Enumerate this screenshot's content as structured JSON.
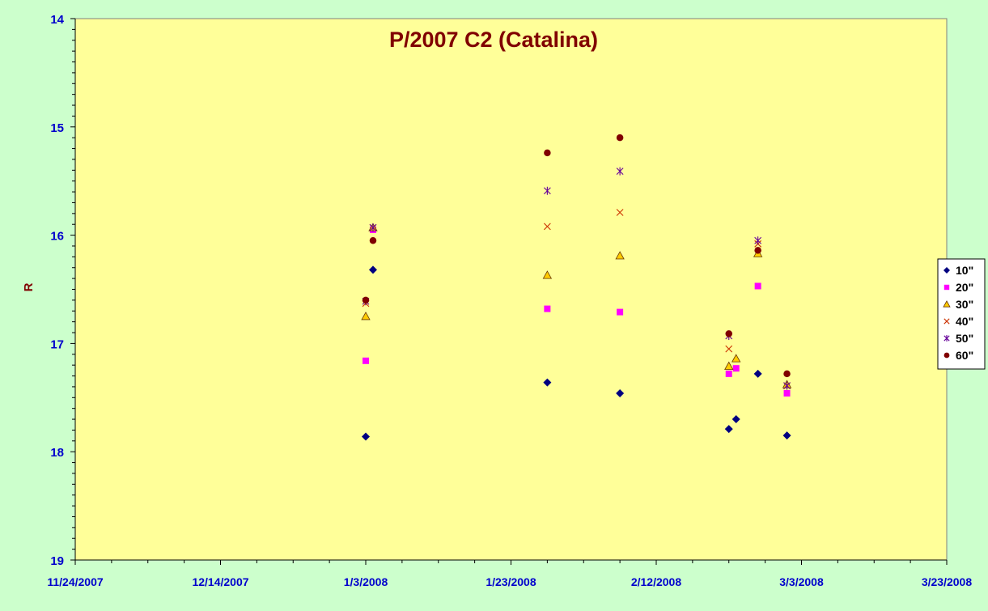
{
  "chart_data": {
    "type": "scatter",
    "title": "P/2007 C2 (Catalina)",
    "xlabel": "",
    "ylabel": "R",
    "x_ticks": [
      "11/24/2007",
      "12/14/2007",
      "1/3/2008",
      "1/23/2008",
      "2/12/2008",
      "3/3/2008",
      "3/23/2008"
    ],
    "x_range": [
      "11/24/2007",
      "3/23/2008"
    ],
    "y_ticks": [
      "14",
      "15",
      "16",
      "17",
      "18",
      "19"
    ],
    "y_range": [
      14,
      19
    ],
    "y_reversed": true,
    "grid": false,
    "legend_position": "right",
    "colors": {
      "plot_background": "#ffff99",
      "outer_background": "#ccffcc",
      "title": "#800000",
      "tick_labels": "#0000cc",
      "axis_label": "#800000"
    },
    "series": [
      {
        "name": "10\"",
        "marker": "diamond",
        "color": "#000080",
        "points": [
          {
            "x": "1/3/2008",
            "y": 17.86
          },
          {
            "x": "1/4/2008",
            "y": 16.32
          },
          {
            "x": "1/28/2008",
            "y": 17.36
          },
          {
            "x": "2/7/2008",
            "y": 17.46
          },
          {
            "x": "2/22/2008",
            "y": 17.79
          },
          {
            "x": "2/23/2008",
            "y": 17.7
          },
          {
            "x": "2/26/2008",
            "y": 17.28
          },
          {
            "x": "3/1/2008",
            "y": 17.85
          }
        ]
      },
      {
        "name": "20\"",
        "marker": "square",
        "color": "#ff00ff",
        "points": [
          {
            "x": "1/3/2008",
            "y": 17.16
          },
          {
            "x": "1/4/2008",
            "y": 15.95
          },
          {
            "x": "1/28/2008",
            "y": 16.68
          },
          {
            "x": "2/7/2008",
            "y": 16.71
          },
          {
            "x": "2/22/2008",
            "y": 17.28
          },
          {
            "x": "2/23/2008",
            "y": 17.23
          },
          {
            "x": "2/26/2008",
            "y": 16.47
          },
          {
            "x": "3/1/2008",
            "y": 17.46
          }
        ]
      },
      {
        "name": "30\"",
        "marker": "triangle",
        "color": "#ffcc00",
        "points": [
          {
            "x": "1/3/2008",
            "y": 16.75
          },
          {
            "x": "1/4/2008",
            "y": 15.93
          },
          {
            "x": "1/28/2008",
            "y": 16.37
          },
          {
            "x": "2/7/2008",
            "y": 16.19
          },
          {
            "x": "2/22/2008",
            "y": 17.21
          },
          {
            "x": "2/23/2008",
            "y": 17.14
          },
          {
            "x": "2/26/2008",
            "y": 16.17
          },
          {
            "x": "3/1/2008",
            "y": 17.38
          }
        ]
      },
      {
        "name": "40\"",
        "marker": "x",
        "color": "#cc3300",
        "points": [
          {
            "x": "1/3/2008",
            "y": 16.63
          },
          {
            "x": "1/4/2008",
            "y": 15.93
          },
          {
            "x": "1/28/2008",
            "y": 15.92
          },
          {
            "x": "2/7/2008",
            "y": 15.79
          },
          {
            "x": "2/22/2008",
            "y": 17.05
          },
          {
            "x": "2/26/2008",
            "y": 16.08
          },
          {
            "x": "3/1/2008",
            "y": 17.39
          }
        ]
      },
      {
        "name": "50\"",
        "marker": "star",
        "color": "#660099",
        "points": [
          {
            "x": "1/3/2008",
            "y": 16.61
          },
          {
            "x": "1/4/2008",
            "y": 15.93
          },
          {
            "x": "1/28/2008",
            "y": 15.59
          },
          {
            "x": "2/7/2008",
            "y": 15.41
          },
          {
            "x": "2/22/2008",
            "y": 16.93
          },
          {
            "x": "2/26/2008",
            "y": 16.05
          },
          {
            "x": "3/1/2008",
            "y": 17.39
          }
        ]
      },
      {
        "name": "60\"",
        "marker": "circle",
        "color": "#800000",
        "points": [
          {
            "x": "1/3/2008",
            "y": 16.6
          },
          {
            "x": "1/4/2008",
            "y": 16.05
          },
          {
            "x": "1/28/2008",
            "y": 15.24
          },
          {
            "x": "2/7/2008",
            "y": 15.1
          },
          {
            "x": "2/22/2008",
            "y": 16.91
          },
          {
            "x": "2/26/2008",
            "y": 16.14
          },
          {
            "x": "3/1/2008",
            "y": 17.28
          }
        ]
      }
    ]
  }
}
